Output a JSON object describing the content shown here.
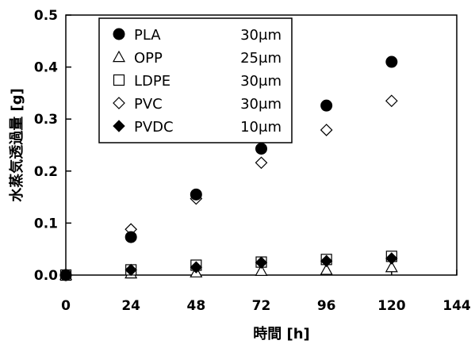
{
  "chart_data": {
    "type": "scatter",
    "xlabel": "時間 [h]",
    "ylabel": "水蒸気透過量 [g]",
    "xlim": [
      0,
      144
    ],
    "ylim": [
      0,
      0.5
    ],
    "x_ticks": [
      "0",
      "24",
      "48",
      "72",
      "96",
      "120",
      "144"
    ],
    "y_ticks": [
      "0.0",
      "0.1",
      "0.2",
      "0.3",
      "0.4",
      "0.5"
    ],
    "grid": false,
    "legend_position": "top-left",
    "series": [
      {
        "name": "PLA",
        "thickness": "30μm",
        "marker": "filled-circle",
        "points": [
          [
            0,
            0.0
          ],
          [
            24,
            0.073
          ],
          [
            48,
            0.155
          ],
          [
            72,
            0.243
          ],
          [
            96,
            0.326
          ],
          [
            120,
            0.41
          ]
        ]
      },
      {
        "name": "OPP",
        "thickness": "25μm",
        "marker": "open-triangle",
        "points": [
          [
            0,
            0.0
          ],
          [
            24,
            0.003
          ],
          [
            48,
            0.005
          ],
          [
            72,
            0.008
          ],
          [
            96,
            0.01
          ],
          [
            120,
            0.015
          ]
        ]
      },
      {
        "name": "LDPE",
        "thickness": "30μm",
        "marker": "open-square",
        "points": [
          [
            0,
            0.0
          ],
          [
            24,
            0.01
          ],
          [
            48,
            0.019
          ],
          [
            72,
            0.025
          ],
          [
            96,
            0.03
          ],
          [
            120,
            0.036
          ]
        ]
      },
      {
        "name": "PVC",
        "thickness": "30μm",
        "marker": "open-diamond",
        "points": [
          [
            0,
            0.0
          ],
          [
            24,
            0.088
          ],
          [
            48,
            0.147
          ],
          [
            72,
            0.216
          ],
          [
            96,
            0.279
          ],
          [
            120,
            0.335
          ]
        ]
      },
      {
        "name": "PVDC",
        "thickness": "10μm",
        "marker": "filled-diamond",
        "points": [
          [
            0,
            0.0
          ],
          [
            24,
            0.01
          ],
          [
            48,
            0.015
          ],
          [
            72,
            0.024
          ],
          [
            96,
            0.027
          ],
          [
            120,
            0.032
          ]
        ]
      }
    ]
  }
}
